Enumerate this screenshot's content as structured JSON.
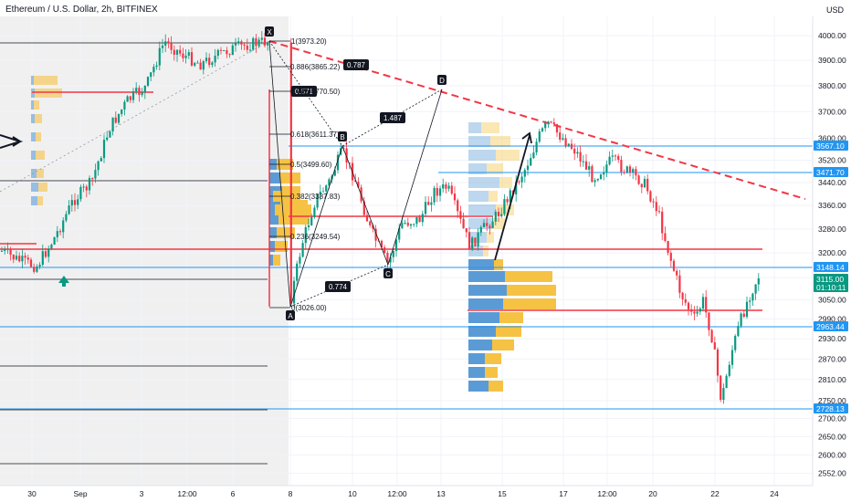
{
  "header": {
    "title": "Ethereum / U.S. Dollar, 2h, BITFINEX",
    "currency": "USD"
  },
  "chart_data": {
    "type": "candlestick",
    "symbol": "Ethereum / U.S. Dollar",
    "interval": "2h",
    "exchange": "BITFINEX",
    "y_axis": {
      "ticks": [
        4000.0,
        3900.0,
        3800.0,
        3700.0,
        3600.0,
        3520.0,
        3440.0,
        3360.0,
        3280.0,
        3200.0,
        3120.0,
        3050.0,
        2990.0,
        2930.0,
        2870.0,
        2810.0,
        2750.0,
        2700.0,
        2650.0,
        2600.0,
        2552.0
      ],
      "scale": "log",
      "range": [
        2520,
        4080
      ]
    },
    "x_axis": {
      "ticks": [
        "30",
        "Sep",
        "3",
        "12:00",
        "6",
        "8",
        "10",
        "12:00",
        "13",
        "15",
        "17",
        "12:00",
        "20",
        "22",
        "24"
      ]
    },
    "price_tags": [
      {
        "value": "3567.10",
        "color": "#2196f3"
      },
      {
        "value": "3471.70",
        "color": "#2196f3"
      },
      {
        "value": "3148.14",
        "color": "#2196f3"
      },
      {
        "value": "3115.00",
        "color": "#089981"
      },
      {
        "value": "01:10:11",
        "color": "#089981"
      },
      {
        "value": "2963.44",
        "color": "#2196f3"
      },
      {
        "value": "2728.13",
        "color": "#2196f3"
      }
    ],
    "fib_levels": [
      {
        "ratio": "1",
        "price": "3973.20",
        "label": "1(3973.20)"
      },
      {
        "ratio": "0.886",
        "price": "3865.22",
        "label": "0.886(3865.22)"
      },
      {
        "ratio": "0.786",
        "price": "3770.50",
        "label": "0.786(3770.50)"
      },
      {
        "ratio": "0.618",
        "price": "3611.37",
        "label": "0.618(3611.37)"
      },
      {
        "ratio": "0.5",
        "price": "3499.60",
        "label": "0.5(3499.60)"
      },
      {
        "ratio": "0.382",
        "price": "3387.83",
        "label": "0.382(3387.83)"
      },
      {
        "ratio": "0.236",
        "price": "3249.54",
        "label": "0.236(3249.54)"
      },
      {
        "ratio": "0",
        "price": "3026.00",
        "label": "0(3026.00)"
      }
    ],
    "pattern_points": [
      "X",
      "A",
      "B",
      "C",
      "D"
    ],
    "pattern_ratios": [
      "0.787",
      "0.571",
      "1.487",
      "0.774"
    ],
    "colors": {
      "up": "#089981",
      "down": "#f23645",
      "support": "#f23645",
      "level": "#2196f3",
      "volume_blue": "#5b9bd5",
      "volume_orange": "#f6c244",
      "shade": "#e6e6e6"
    }
  }
}
